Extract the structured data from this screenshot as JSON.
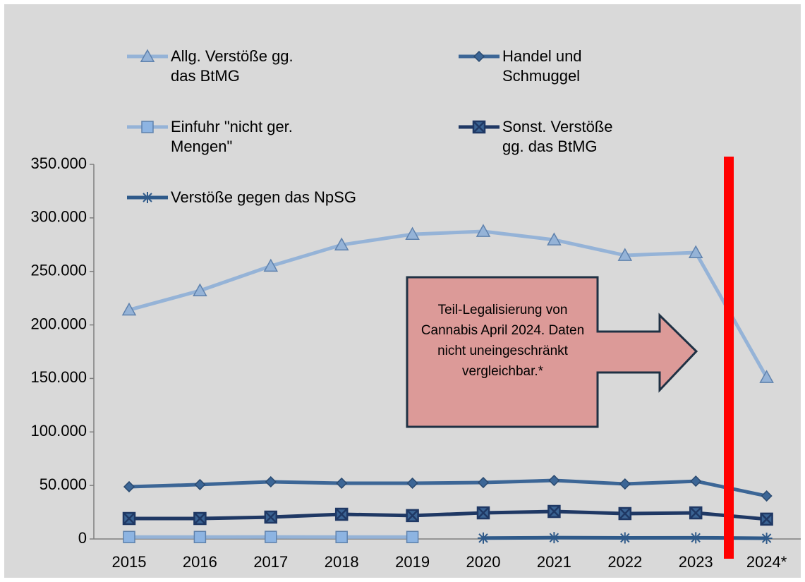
{
  "chart_data": {
    "type": "line",
    "categories": [
      "2015",
      "2016",
      "2017",
      "2018",
      "2019",
      "2020",
      "2021",
      "2022",
      "2023",
      "2024*"
    ],
    "series": [
      {
        "name": "Allg. Verstöße gg. das BtMG",
        "color": "#95b3d7",
        "marker": "triangle",
        "values": [
          214000,
          232000,
          255000,
          274800,
          284700,
          287400,
          279500,
          265000,
          267600,
          151000
        ]
      },
      {
        "name": "Handel und Schmuggel",
        "color": "#3c6696",
        "marker": "diamond",
        "values": [
          48800,
          50800,
          53400,
          52100,
          52100,
          52700,
          54700,
          51400,
          54000,
          40200
        ]
      },
      {
        "name": "Einfuhr \"nicht ger. Mengen\"",
        "color": "#95b3d7",
        "marker": "square",
        "values": [
          1800,
          1800,
          1900,
          1800,
          1800,
          null,
          null,
          null,
          null,
          null
        ]
      },
      {
        "name": "Sonst. Verstöße gg. das BtMG",
        "color": "#1f3864",
        "marker": "xsquare",
        "values": [
          19100,
          19100,
          20400,
          23100,
          21800,
          24400,
          25700,
          23700,
          24400,
          18500
        ]
      },
      {
        "name": "Verstöße gegen das NpSG",
        "color": "#2f5a8a",
        "marker": "star",
        "values": [
          null,
          null,
          null,
          null,
          null,
          800,
          1200,
          1000,
          1100,
          700
        ]
      }
    ],
    "ylim": [
      0,
      350000
    ],
    "yticks": [
      0,
      {
        "value": 50000,
        "label": "50.000"
      },
      {
        "value": 100000,
        "label": "100.000"
      },
      {
        "value": 150000,
        "label": "150.000"
      },
      {
        "value": 200000,
        "label": "200.000"
      },
      {
        "value": 250000,
        "label": "250.000"
      },
      {
        "value": 300000,
        "label": "300.000"
      },
      {
        "value": 350000,
        "label": "350.000"
      }
    ],
    "annotations": [
      "Teil-Legalisierung von Cannabis April 2024. Daten nicht uneingeschränkt vergleichbar.*"
    ]
  }
}
